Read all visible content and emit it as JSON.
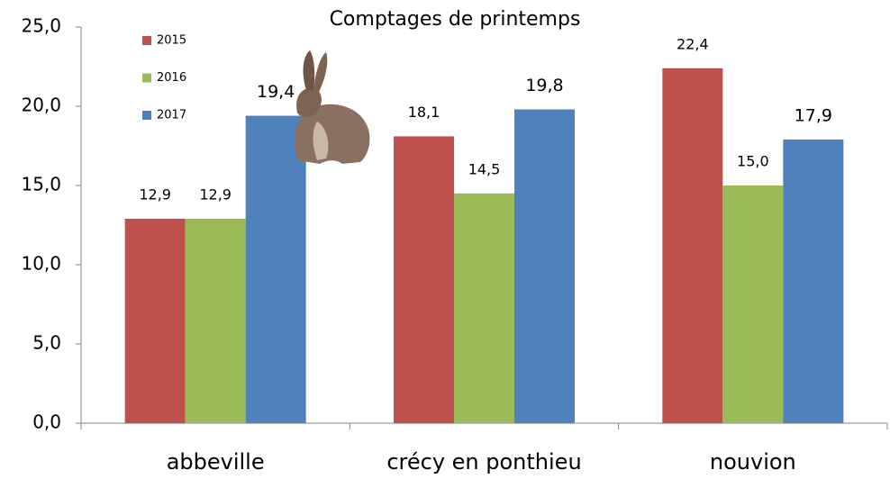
{
  "chart_data": {
    "type": "bar",
    "title": "Comptages de printemps",
    "categories": [
      "abbeville",
      "crécy en ponthieu",
      "nouvion"
    ],
    "series": [
      {
        "name": "2015",
        "color": "#c0504d",
        "values": [
          12.9,
          18.1,
          22.4
        ],
        "value_labels": [
          "12,9",
          "18,1",
          "22,4"
        ]
      },
      {
        "name": "2016",
        "color": "#9bbb59",
        "values": [
          12.9,
          14.5,
          15.0
        ],
        "value_labels": [
          "12,9",
          "14,5",
          "15,0"
        ]
      },
      {
        "name": "2017",
        "color": "#4f81bd",
        "values": [
          19.4,
          19.8,
          17.9
        ],
        "value_labels": [
          "19,4",
          "19,8",
          "17,9"
        ]
      }
    ],
    "ylim": [
      0,
      25
    ],
    "yticks": [
      {
        "value": 0,
        "label": "0,0"
      },
      {
        "value": 5,
        "label": "5,0"
      },
      {
        "value": 10,
        "label": "10,0"
      },
      {
        "value": 15,
        "label": "15,0"
      },
      {
        "value": 20,
        "label": "20,0"
      },
      {
        "value": 25,
        "label": "25,0"
      }
    ],
    "legend": "top-left",
    "grid": false
  }
}
